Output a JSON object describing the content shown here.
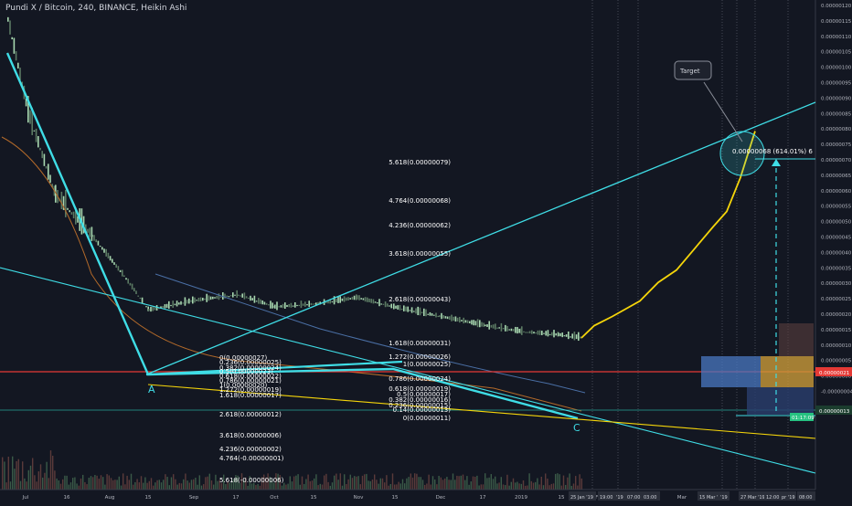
{
  "header": {
    "title": "Pundi X / Bitcoin, 240, BINANCE, Heikin Ashi"
  },
  "colors": {
    "background": "#131722",
    "cyan": "#3fdde6",
    "yellow": "#f5d50a",
    "red": "#e53935",
    "green": "#26a69a",
    "candle_up": "#a8d8b0",
    "ma_orange": "#b36a2a",
    "ma_blue": "#4a6fa5",
    "grid": "#5d606b"
  },
  "annotations": {
    "target_label": "Target",
    "target_value": "0.00000068 (614.01%) 6",
    "point_a": "A",
    "point_c": "C"
  },
  "price_labels": {
    "current_price_red": "0.00000021",
    "current_price_green": "0.00000013",
    "countdown": "01:17:09"
  },
  "fib_upper": [
    {
      "label": "5.618(0.00000079)",
      "value": 7.9e-07
    },
    {
      "label": "4.764(0.00000068)",
      "value": 6.8e-07
    },
    {
      "label": "4.236(0.00000062)",
      "value": 6.2e-07
    },
    {
      "label": "3.618(0.00000055)",
      "value": 5.5e-07
    },
    {
      "label": "2.618(0.00000043)",
      "value": 4.3e-07
    },
    {
      "label": "1.618(0.00000031)",
      "value": 3.1e-07
    },
    {
      "label": "1.272(0.00000026)",
      "value": 2.6e-07
    },
    {
      "label": "1(0.00000025)",
      "value": 2.5e-07
    },
    {
      "label": "0.786(0.00000024)",
      "value": 2.4e-07
    },
    {
      "label": "0.618(0.00000019)",
      "value": 1.9e-07
    },
    {
      "label": "0.5(0.00000017)",
      "value": 1.7e-07
    },
    {
      "label": "0.382(0.00000016)",
      "value": 1.6e-07
    },
    {
      "label": "0.236(0.00000015)",
      "value": 1.5e-07
    },
    {
      "label": "0.14(0.00000013)",
      "value": 1.3e-07
    },
    {
      "label": "0(0.00000011)",
      "value": 1.1e-07
    }
  ],
  "fib_lower": [
    {
      "label": "0(0.00000027)",
      "value": 2.7e-07
    },
    {
      "label": "0.236(0.00000025)",
      "value": 2.5e-07
    },
    {
      "label": "0.382(0.00000024)",
      "value": 2.4e-07
    },
    {
      "label": "0.5(0.00000023)",
      "value": 2.3e-07
    },
    {
      "label": "0.618(0.00000022)",
      "value": 2.2e-07
    },
    {
      "label": "0.786(0.00000021)",
      "value": 2.1e-07
    },
    {
      "label": "1(0.00000020)",
      "value": 2e-07
    },
    {
      "label": "1.272(0.00000019)",
      "value": 1.9e-07
    },
    {
      "label": "1.618(0.00000017)",
      "value": 1.7e-07
    },
    {
      "label": "2.618(0.00000012)",
      "value": 1.2e-07
    },
    {
      "label": "3.618(0.00000006)",
      "value": 6e-08
    },
    {
      "label": "4.236(0.00000002)",
      "value": 2e-08
    },
    {
      "label": "4.764(-0.00000001)",
      "value": -1e-08
    },
    {
      "label": "5.618(-0.00000006)",
      "value": -6e-08
    }
  ],
  "chart_data": {
    "type": "line",
    "title": "Pundi X / Bitcoin, 240, BINANCE, Heikin Ashi",
    "yaxis_ticks": [
      "0.00000120",
      "0.00000115",
      "0.00000110",
      "0.00000105",
      "0.00000100",
      "0.00000095",
      "0.00000090",
      "0.00000085",
      "0.00000080",
      "0.00000075",
      "0.00000070",
      "0.00000065",
      "0.00000060",
      "0.00000055",
      "0.00000050",
      "0.00000045",
      "0.00000040",
      "0.00000035",
      "0.00000030",
      "0.00000025",
      "0.00000020",
      "0.00000015",
      "0.00000010",
      "0.00000005",
      "0.00000000",
      "-0.00000004"
    ],
    "ylim": [
      -4e-08,
      1.2e-06
    ],
    "xaxis_ticks": [
      "Jul",
      "16",
      "Aug",
      "15",
      "Sep",
      "17",
      "Oct",
      "15",
      "Nov",
      "15",
      "Dec",
      "17",
      "2019",
      "15",
      "Feb",
      "18",
      "Mar",
      "18"
    ],
    "xaxis_overlay_labels": [
      "25 Jan '19",
      "19:00",
      "'19",
      "07:00",
      "03:00",
      "15 Mar '19",
      "'19",
      "27 Mar '19",
      "12:00",
      "pr '19",
      "08:00"
    ],
    "series": [
      {
        "name": "price",
        "x": [
          "Jul 1",
          "Jul 10",
          "Jul 20",
          "Aug 1",
          "Aug 10",
          "Aug 15",
          "Sep 1",
          "Sep 15",
          "Oct 1",
          "Oct 15",
          "Nov 1",
          "Nov 15",
          "Dec 1",
          "Dec 17",
          "Jan 1",
          "Jan 15",
          "Jan 25"
        ],
        "y": [
          1.15e-06,
          8.5e-07,
          5.8e-07,
          4.5e-07,
          3.2e-07,
          2.1e-07,
          2.4e-07,
          2.6e-07,
          2.2e-07,
          2.3e-07,
          2.5e-07,
          2.2e-07,
          1.9e-07,
          1.6e-07,
          1.4e-07,
          1.3e-07,
          1.2e-07
        ]
      },
      {
        "name": "projection",
        "x": [
          "Jan 25",
          "Feb 1",
          "Feb 10",
          "Feb 18",
          "Feb 25",
          "Mar 5",
          "Mar 12",
          "Mar 18",
          "Mar 22",
          "Mar 26",
          "Mar 28"
        ],
        "y": [
          1.2e-07,
          1.6e-07,
          1.9e-07,
          2.4e-07,
          3e-07,
          3.4e-07,
          4.1e-07,
          4.8e-07,
          5.3e-07,
          6.4e-07,
          7.9e-07
        ]
      }
    ]
  }
}
